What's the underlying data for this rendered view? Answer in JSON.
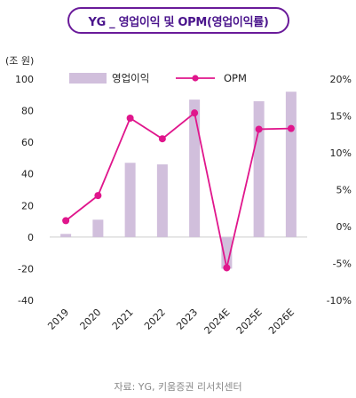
{
  "title": "YG _ 영업이익 및 OPM(영업이익률)",
  "unit_label": "(조 원)",
  "source": "자료: YG, 키움증권 리서치센터",
  "chart_data": {
    "type": "bar+line",
    "categories": [
      "2019",
      "2020",
      "2021",
      "2022",
      "2023",
      "2024E",
      "2025E",
      "2026E"
    ],
    "series": [
      {
        "name": "영업이익",
        "type": "bar",
        "axis": "left",
        "color": "#d1bfdc",
        "values": [
          2,
          11,
          47,
          46,
          87,
          -20,
          86,
          92
        ]
      },
      {
        "name": "OPM",
        "type": "line",
        "axis": "right",
        "color": "#e0168c",
        "values": [
          0.8,
          4.2,
          14.7,
          11.9,
          15.4,
          -5.6,
          13.2,
          13.3
        ]
      }
    ],
    "left_axis": {
      "min": -40,
      "max": 100,
      "step": 20,
      "ticks": [
        "-40",
        "-20",
        "0",
        "20",
        "40",
        "60",
        "80",
        "100"
      ]
    },
    "right_axis": {
      "min": -10,
      "max": 20,
      "step": 5,
      "ticks": [
        "-10%",
        "-5%",
        "0%",
        "5%",
        "10%",
        "15%",
        "20%"
      ]
    },
    "legend_position": "top-center",
    "grid": false
  }
}
